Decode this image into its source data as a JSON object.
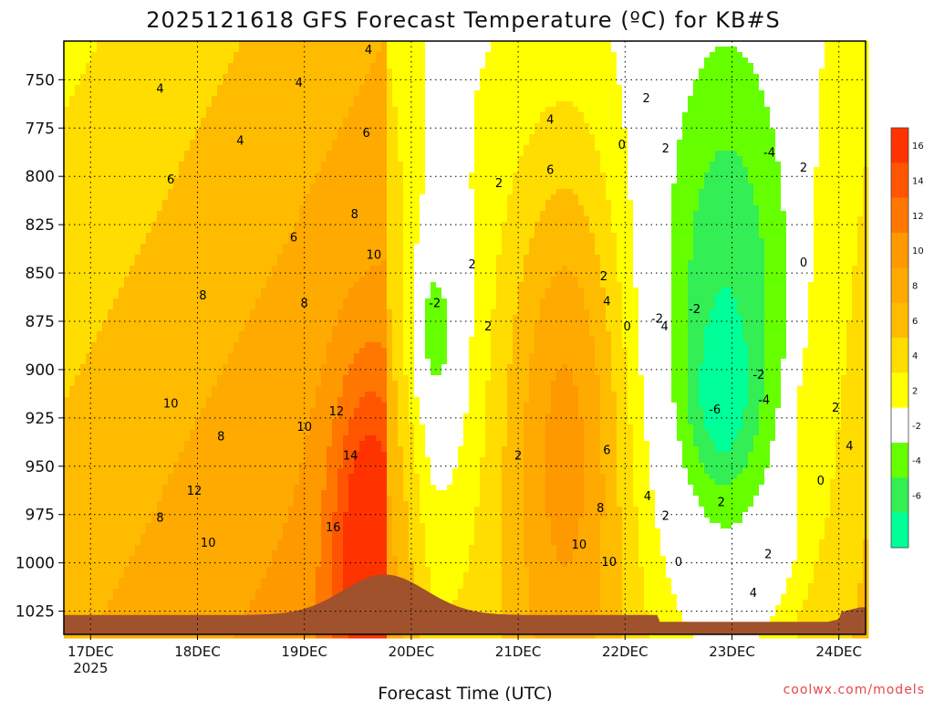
{
  "header": {
    "title": "2025121618 GFS Forecast Temperature (ºC) for KB#S",
    "credit": "coolwx.com/models"
  },
  "chart_data": {
    "type": "heatmap",
    "title": "2025121618 GFS Forecast Temperature (ºC) for KB#S",
    "xlabel": "Forecast Time (UTC)",
    "ylabel": "",
    "x_ticks": [
      "17DEC",
      "18DEC",
      "19DEC",
      "20DEC",
      "21DEC",
      "22DEC",
      "23DEC",
      "24DEC"
    ],
    "x_tick_year": "2025",
    "y_ticks": [
      750,
      775,
      800,
      825,
      850,
      875,
      900,
      925,
      950,
      975,
      1000,
      1025
    ],
    "xlim_days": [
      16.75,
      24.25
    ],
    "ylim_hpa": [
      730,
      1037
    ],
    "grid": true,
    "colorbar": {
      "ticks": [
        16,
        14,
        12,
        10,
        8,
        6,
        4,
        2,
        -2,
        -4,
        -6
      ],
      "bins": [
        {
          "min": 16,
          "max": 18,
          "color": "#ff3300"
        },
        {
          "min": 14,
          "max": 16,
          "color": "#ff5500"
        },
        {
          "min": 12,
          "max": 14,
          "color": "#ff7700"
        },
        {
          "min": 10,
          "max": 12,
          "color": "#ff9900"
        },
        {
          "min": 8,
          "max": 10,
          "color": "#ffaa00"
        },
        {
          "min": 6,
          "max": 8,
          "color": "#ffbb00"
        },
        {
          "min": 4,
          "max": 6,
          "color": "#ffdd00"
        },
        {
          "min": 2,
          "max": 4,
          "color": "#ffff00"
        },
        {
          "min": -2,
          "max": 2,
          "color": "#ffffff"
        },
        {
          "min": -4,
          "max": -2,
          "color": "#66ff00"
        },
        {
          "min": -6,
          "max": -4,
          "color": "#33ee55"
        },
        {
          "min": -8,
          "max": -6,
          "color": "#00ff99"
        }
      ]
    },
    "terrain_color": "#a0522d",
    "contour_interval": 2,
    "contour_labels": [
      {
        "day": 17.65,
        "p": 755,
        "v": 4
      },
      {
        "day": 18.4,
        "p": 782,
        "v": 4
      },
      {
        "day": 18.95,
        "p": 752,
        "v": 4
      },
      {
        "day": 19.6,
        "p": 735,
        "v": 4
      },
      {
        "day": 17.75,
        "p": 802,
        "v": 6
      },
      {
        "day": 18.9,
        "p": 832,
        "v": 6
      },
      {
        "day": 19.58,
        "p": 778,
        "v": 6
      },
      {
        "day": 18.05,
        "p": 862,
        "v": 8
      },
      {
        "day": 19.0,
        "p": 866,
        "v": 8
      },
      {
        "day": 19.47,
        "p": 820,
        "v": 8
      },
      {
        "day": 19.65,
        "p": 841,
        "v": 10
      },
      {
        "day": 17.75,
        "p": 918,
        "v": 10
      },
      {
        "day": 18.22,
        "p": 935,
        "v": 8
      },
      {
        "day": 19.0,
        "p": 930,
        "v": 10
      },
      {
        "day": 19.3,
        "p": 922,
        "v": 12
      },
      {
        "day": 19.43,
        "p": 945,
        "v": 14
      },
      {
        "day": 19.27,
        "p": 982,
        "v": 16
      },
      {
        "day": 17.65,
        "p": 977,
        "v": 8
      },
      {
        "day": 17.97,
        "p": 963,
        "v": 12
      },
      {
        "day": 18.1,
        "p": 990,
        "v": 10
      },
      {
        "day": 20.22,
        "p": 866,
        "v": -2
      },
      {
        "day": 20.57,
        "p": 846,
        "v": 2
      },
      {
        "day": 20.72,
        "p": 878,
        "v": 2
      },
      {
        "day": 20.82,
        "p": 804,
        "v": 2
      },
      {
        "day": 21.3,
        "p": 797,
        "v": 6
      },
      {
        "day": 21.3,
        "p": 771,
        "v": 4
      },
      {
        "day": 21.0,
        "p": 945,
        "v": 2
      },
      {
        "day": 21.83,
        "p": 865,
        "v": 4
      },
      {
        "day": 21.8,
        "p": 852,
        "v": 2
      },
      {
        "day": 21.83,
        "p": 942,
        "v": 6
      },
      {
        "day": 21.77,
        "p": 972,
        "v": 8
      },
      {
        "day": 21.57,
        "p": 991,
        "v": 10
      },
      {
        "day": 21.85,
        "p": 1000,
        "v": 10
      },
      {
        "day": 22.02,
        "p": 878,
        "v": 0
      },
      {
        "day": 21.97,
        "p": 784,
        "v": 0
      },
      {
        "day": 22.2,
        "p": 760,
        "v": 2
      },
      {
        "day": 22.38,
        "p": 786,
        "v": 2
      },
      {
        "day": 22.65,
        "p": 869,
        "v": -2
      },
      {
        "day": 22.3,
        "p": 874,
        "v": -2
      },
      {
        "day": 22.37,
        "p": 878,
        "v": 4
      },
      {
        "day": 22.21,
        "p": 966,
        "v": 4
      },
      {
        "day": 22.38,
        "p": 976,
        "v": 2
      },
      {
        "day": 22.5,
        "p": 1000,
        "v": 0
      },
      {
        "day": 22.84,
        "p": 921,
        "v": -6
      },
      {
        "day": 23.3,
        "p": 916,
        "v": -4
      },
      {
        "day": 23.25,
        "p": 903,
        "v": -2
      },
      {
        "day": 23.35,
        "p": 788,
        "v": -4
      },
      {
        "day": 22.9,
        "p": 969,
        "v": 2
      },
      {
        "day": 23.34,
        "p": 996,
        "v": 2
      },
      {
        "day": 23.2,
        "p": 1016,
        "v": 4
      },
      {
        "day": 23.67,
        "p": 796,
        "v": 2
      },
      {
        "day": 23.67,
        "p": 845,
        "v": 0
      },
      {
        "day": 23.83,
        "p": 958,
        "v": 0
      },
      {
        "day": 23.97,
        "p": 920,
        "v": 2
      },
      {
        "day": 24.1,
        "p": 940,
        "v": 4
      }
    ]
  }
}
